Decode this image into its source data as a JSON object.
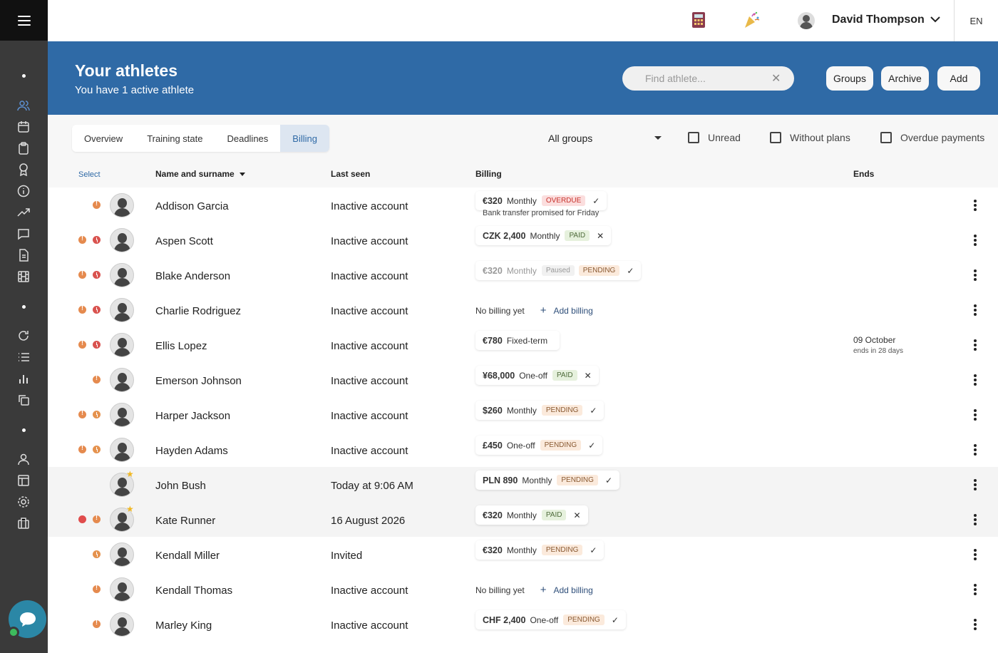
{
  "topbar": {
    "user_name": "David Thompson",
    "language": "EN"
  },
  "header": {
    "title": "Your athletes",
    "subtitle": "You have 1 active athlete",
    "search_placeholder": "Find athlete...",
    "groups_label": "Groups",
    "archive_label": "Archive",
    "add_label": "Add"
  },
  "tabs": [
    {
      "label": "Overview",
      "active": false
    },
    {
      "label": "Training state",
      "active": false
    },
    {
      "label": "Deadlines",
      "active": false
    },
    {
      "label": "Billing",
      "active": true
    }
  ],
  "filters": {
    "group": "All groups",
    "unread": "Unread",
    "without_plans": "Without plans",
    "overdue_payments": "Overdue payments"
  },
  "table": {
    "select_label": "Select",
    "columns": {
      "name": "Name and surname",
      "last_seen": "Last seen",
      "billing": "Billing",
      "ends": "Ends"
    },
    "no_billing": "No billing yet",
    "add_billing": "Add billing",
    "rows": [
      {
        "name": "Addison Garcia",
        "last_seen": "Inactive account",
        "status": [
          "o"
        ],
        "star": false,
        "billing": {
          "amount": "€320",
          "freq": "Monthly",
          "badges": [
            {
              "t": "OVERDUE",
              "k": "overdue"
            }
          ],
          "action": "✓",
          "note": "Bank transfer promised for Friday"
        }
      },
      {
        "name": "Aspen Scott",
        "last_seen": "Inactive account",
        "status": [
          "o",
          "c"
        ],
        "star": false,
        "billing": {
          "amount": "CZK 2,400",
          "freq": "Monthly",
          "badges": [
            {
              "t": "PAID",
              "k": "paid"
            }
          ],
          "action": "✕"
        }
      },
      {
        "name": "Blake Anderson",
        "last_seen": "Inactive account",
        "status": [
          "o",
          "c"
        ],
        "star": false,
        "billing": {
          "amount": "€320",
          "freq": "Monthly",
          "badges": [
            {
              "t": "Paused",
              "k": "paused"
            },
            {
              "t": "PENDING",
              "k": "pending"
            }
          ],
          "action": "✓",
          "faded": true
        }
      },
      {
        "name": "Charlie Rodriguez",
        "last_seen": "Inactive account",
        "status": [
          "o",
          "c"
        ],
        "star": false,
        "billing": null
      },
      {
        "name": "Ellis Lopez",
        "last_seen": "Inactive account",
        "status": [
          "o",
          "c"
        ],
        "star": false,
        "billing": {
          "amount": "€780",
          "freq": "Fixed-term",
          "badges": [],
          "action": ""
        },
        "ends": {
          "date": "09 October",
          "note": "ends in 28 days"
        }
      },
      {
        "name": "Emerson Johnson",
        "last_seen": "Inactive account",
        "status": [
          "o"
        ],
        "star": false,
        "billing": {
          "amount": "¥68,000",
          "freq": "One-off",
          "badges": [
            {
              "t": "PAID",
              "k": "paid"
            }
          ],
          "action": "✕"
        }
      },
      {
        "name": "Harper Jackson",
        "last_seen": "Inactive account",
        "status": [
          "o",
          "oc"
        ],
        "star": false,
        "billing": {
          "amount": "$260",
          "freq": "Monthly",
          "badges": [
            {
              "t": "PENDING",
              "k": "pending"
            }
          ],
          "action": "✓"
        }
      },
      {
        "name": "Hayden Adams",
        "last_seen": "Inactive account",
        "status": [
          "o",
          "oc"
        ],
        "star": false,
        "billing": {
          "amount": "£450",
          "freq": "One-off",
          "badges": [
            {
              "t": "PENDING",
              "k": "pending"
            }
          ],
          "action": "✓"
        }
      },
      {
        "name": "John Bush",
        "last_seen": "Today at 9:06 AM",
        "status": [],
        "star": true,
        "highlight": true,
        "billing": {
          "amount": "PLN 890",
          "freq": "Monthly",
          "badges": [
            {
              "t": "PENDING",
              "k": "pending"
            }
          ],
          "action": "✓"
        }
      },
      {
        "name": "Kate Runner",
        "last_seen": "16 August 2026",
        "status": [
          "r",
          "o"
        ],
        "star": true,
        "highlight": true,
        "billing": {
          "amount": "€320",
          "freq": "Monthly",
          "badges": [
            {
              "t": "PAID",
              "k": "paid"
            }
          ],
          "action": "✕"
        }
      },
      {
        "name": "Kendall Miller",
        "last_seen": "Invited",
        "status": [
          "oc"
        ],
        "star": false,
        "billing": {
          "amount": "€320",
          "freq": "Monthly",
          "badges": [
            {
              "t": "PENDING",
              "k": "pending"
            }
          ],
          "action": "✓"
        }
      },
      {
        "name": "Kendall Thomas",
        "last_seen": "Inactive account",
        "status": [
          "o"
        ],
        "star": false,
        "billing": null
      },
      {
        "name": "Marley King",
        "last_seen": "Inactive account",
        "status": [
          "o"
        ],
        "star": false,
        "billing": {
          "amount": "CHF 2,400",
          "freq": "One-off",
          "badges": [
            {
              "t": "PENDING",
              "k": "pending"
            }
          ],
          "action": "✓"
        }
      }
    ]
  },
  "colors": {
    "brand_blue": "#2f6aa6",
    "sidebar": "#3a3a3a",
    "overdue": "#c8322c",
    "paid": "#4e6b3a",
    "pending": "#8a5a32"
  },
  "icons": {
    "calculator": "calculator-icon",
    "celebration": "party-popper-icon",
    "chevron": "chevron-down-icon"
  }
}
